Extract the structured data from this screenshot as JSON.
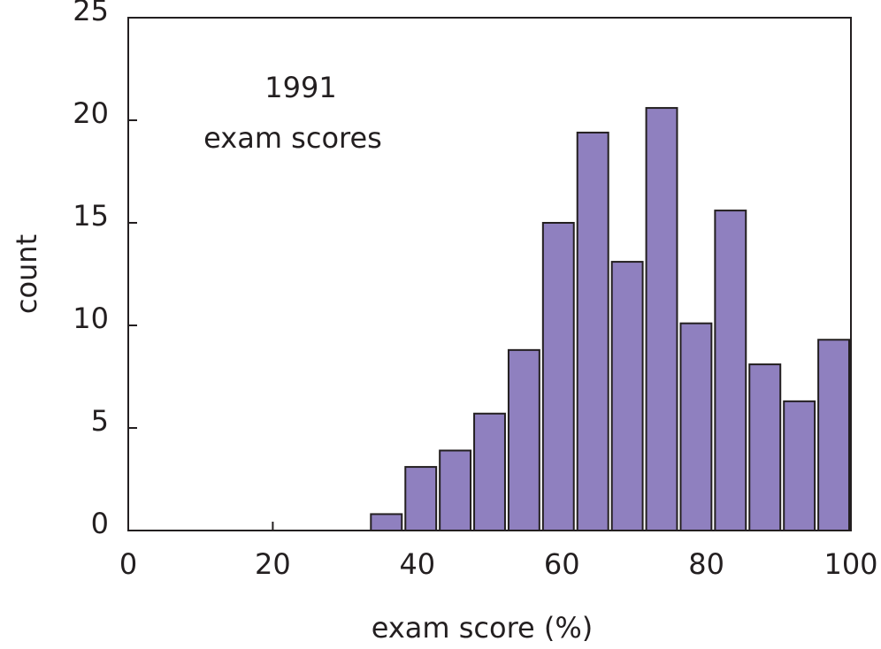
{
  "chart_data": {
    "type": "histogram",
    "annotation": [
      "1991",
      "exam scores"
    ],
    "xlabel": "exam score (%)",
    "ylabel": "count",
    "bins": [
      33.33,
      38.1,
      42.86,
      47.62,
      52.38,
      57.14,
      61.9,
      66.67,
      71.43,
      76.19,
      80.95,
      85.71,
      90.48,
      95.24,
      100
    ],
    "values": [
      0.8,
      3.1,
      3.9,
      5.7,
      8.8,
      15.0,
      19.4,
      13.1,
      20.6,
      10.1,
      15.6,
      8.1,
      6.3,
      9.3
    ],
    "color": "#8f80bf",
    "xlim": [
      0,
      100
    ],
    "xticks": [
      0,
      20,
      40,
      60,
      80,
      100
    ],
    "ylim": [
      0,
      25
    ],
    "yticks": [
      0,
      5,
      10,
      15,
      20,
      25
    ]
  }
}
